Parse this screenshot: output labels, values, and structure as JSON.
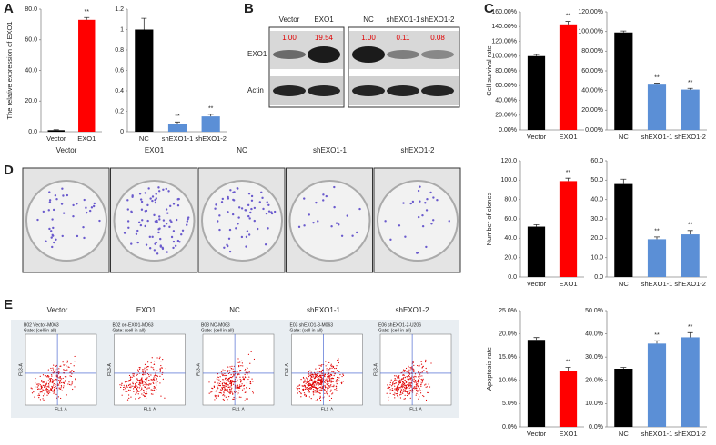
{
  "panels": [
    "A",
    "B",
    "C",
    "D",
    "E"
  ],
  "blot": {
    "lanes": [
      "Vector",
      "EXO1",
      "NC",
      "shEXO1-1",
      "shEXO1-2"
    ],
    "rows": [
      "EXO1",
      "Actin"
    ],
    "quant": [
      "1.00",
      "19.54",
      "1.00",
      "0.11",
      "0.08"
    ]
  },
  "colony": {
    "labels": [
      "Vector",
      "EXO1",
      "NC",
      "shEXO1-1",
      "shEXO1-2"
    ]
  },
  "flow": {
    "labels": [
      "Vector",
      "EXO1",
      "NC",
      "shEXO1-1",
      "shEXO1-2"
    ],
    "headers": [
      "B02 Vector-M063",
      "B02 oe-EXO1-M063",
      "B08 NC-M063",
      "E03 shEXO1-3-M063",
      "E06 shEXO1-2-U206"
    ],
    "gate": "Gate: (cell in all)",
    "x_label": "FL1-A",
    "y_label": "FL3-A"
  },
  "chart_data": [
    {
      "type": "bar",
      "ylabel": "The relative expression of EXO1",
      "categories": [
        "Vector",
        "EXO1"
      ],
      "values": [
        1,
        73
      ],
      "errors": [
        0.3,
        1.5
      ],
      "colors": [
        "#000000",
        "#ff0000"
      ],
      "ylim": [
        0,
        80
      ],
      "yticks": [
        {
          "value": 0,
          "label": "0.0"
        },
        {
          "value": 20,
          "label": "20.0"
        },
        {
          "value": 40,
          "label": "40.0"
        },
        {
          "value": 60,
          "label": "60.0"
        },
        {
          "value": 80,
          "label": "80.0"
        }
      ],
      "annotations": [
        {
          "category": "EXO1",
          "text": "**"
        }
      ]
    },
    {
      "type": "bar",
      "categories": [
        "NC",
        "shEXO1-1",
        "shEXO1-2"
      ],
      "values": [
        1.0,
        0.08,
        0.15
      ],
      "errors": [
        0.11,
        0.015,
        0.02
      ],
      "colors": [
        "#000000",
        "#5b8fd6",
        "#5b8fd6"
      ],
      "ylim": [
        0,
        1.2
      ],
      "yticks": [
        0,
        0.2,
        0.4,
        0.6,
        0.8,
        1,
        1.2
      ],
      "annotations": [
        {
          "category": "shEXO1-1",
          "text": "**"
        },
        {
          "category": "shEXO1-2",
          "text": "**"
        }
      ]
    },
    {
      "type": "bar",
      "ylabel": "Cell survival rate",
      "categories": [
        "Vector",
        "EXO1"
      ],
      "values": [
        100,
        143
      ],
      "errors": [
        2,
        4
      ],
      "colors": [
        "#000000",
        "#ff0000"
      ],
      "ylim": [
        0,
        160
      ],
      "yticks": [
        {
          "value": 0,
          "label": "0.00%"
        },
        {
          "value": 20,
          "label": "20.00%"
        },
        {
          "value": 40,
          "label": "40.00%"
        },
        {
          "value": 60,
          "label": "60.00%"
        },
        {
          "value": 80,
          "label": "80.00%"
        },
        {
          "value": 100,
          "label": "100.00%"
        },
        {
          "value": 120,
          "label": "120.00%"
        },
        {
          "value": 140,
          "label": "140.00%"
        },
        {
          "value": 160,
          "label": "160.00%"
        }
      ],
      "annotations": [
        {
          "category": "EXO1",
          "text": "**"
        }
      ]
    },
    {
      "type": "bar",
      "categories": [
        "NC",
        "shEXO1-1",
        "shEXO1-2"
      ],
      "values": [
        99,
        46,
        41
      ],
      "errors": [
        1.5,
        1.5,
        1.2
      ],
      "colors": [
        "#000000",
        "#5b8fd6",
        "#5b8fd6"
      ],
      "ylim": [
        0,
        120
      ],
      "yticks": [
        {
          "value": 0,
          "label": "0.00%"
        },
        {
          "value": 20,
          "label": "20.00%"
        },
        {
          "value": 40,
          "label": "40.00%"
        },
        {
          "value": 60,
          "label": "60.00%"
        },
        {
          "value": 80,
          "label": "80.00%"
        },
        {
          "value": 100,
          "label": "100.00%"
        },
        {
          "value": 120,
          "label": "120.00%"
        }
      ],
      "annotations": [
        {
          "category": "shEXO1-1",
          "text": "**"
        },
        {
          "category": "shEXO1-2",
          "text": "**"
        }
      ]
    },
    {
      "type": "bar",
      "ylabel": "Number of clones",
      "categories": [
        "Vector",
        "EXO1"
      ],
      "values": [
        52,
        99
      ],
      "errors": [
        2,
        3
      ],
      "colors": [
        "#000000",
        "#ff0000"
      ],
      "ylim": [
        0,
        120
      ],
      "yticks": [
        {
          "value": 0,
          "label": "0.0"
        },
        {
          "value": 20,
          "label": "20.0"
        },
        {
          "value": 40,
          "label": "40.0"
        },
        {
          "value": 60,
          "label": "60.0"
        },
        {
          "value": 80,
          "label": "80.0"
        },
        {
          "value": 100,
          "label": "100.0"
        },
        {
          "value": 120,
          "label": "120.0"
        }
      ],
      "annotations": [
        {
          "category": "EXO1",
          "text": "**"
        }
      ]
    },
    {
      "type": "bar",
      "categories": [
        "NC",
        "shEXO1-1",
        "shEXO1-2"
      ],
      "values": [
        48,
        19.5,
        22
      ],
      "errors": [
        2.5,
        1.2,
        2
      ],
      "colors": [
        "#000000",
        "#5b8fd6",
        "#5b8fd6"
      ],
      "ylim": [
        0,
        60
      ],
      "yticks": [
        {
          "value": 0,
          "label": "0.0"
        },
        {
          "value": 10,
          "label": "10.0"
        },
        {
          "value": 20,
          "label": "20.0"
        },
        {
          "value": 30,
          "label": "30.0"
        },
        {
          "value": 40,
          "label": "40.0"
        },
        {
          "value": 50,
          "label": "50.0"
        },
        {
          "value": 60,
          "label": "60.0"
        }
      ],
      "annotations": [
        {
          "category": "shEXO1-1",
          "text": "**"
        },
        {
          "category": "shEXO1-2",
          "text": "**"
        }
      ]
    },
    {
      "type": "bar",
      "ylabel": "Apoptosis rate",
      "categories": [
        "Vector",
        "EXO1"
      ],
      "values": [
        18.7,
        12.1
      ],
      "errors": [
        0.5,
        0.7
      ],
      "colors": [
        "#000000",
        "#ff0000"
      ],
      "ylim": [
        0,
        25
      ],
      "yticks": [
        {
          "value": 0,
          "label": "0.0%"
        },
        {
          "value": 5,
          "label": "5.0%"
        },
        {
          "value": 10,
          "label": "10.0%"
        },
        {
          "value": 15,
          "label": "15.0%"
        },
        {
          "value": 20,
          "label": "20.0%"
        },
        {
          "value": 25,
          "label": "25.0%"
        }
      ],
      "annotations": [
        {
          "category": "EXO1",
          "text": "**"
        }
      ]
    },
    {
      "type": "bar",
      "categories": [
        "NC",
        "shEXO1-1",
        "shEXO1-2"
      ],
      "values": [
        25,
        35.8,
        38.5
      ],
      "errors": [
        0.6,
        1.2,
        2
      ],
      "colors": [
        "#000000",
        "#5b8fd6",
        "#5b8fd6"
      ],
      "ylim": [
        0,
        50
      ],
      "yticks": [
        {
          "value": 0,
          "label": "0.0%"
        },
        {
          "value": 10,
          "label": "10.0%"
        },
        {
          "value": 20,
          "label": "20.0%"
        },
        {
          "value": 30,
          "label": "30.0%"
        },
        {
          "value": 40,
          "label": "40.0%"
        },
        {
          "value": 50,
          "label": "50.0%"
        }
      ],
      "annotations": [
        {
          "category": "shEXO1-1",
          "text": "**"
        },
        {
          "category": "shEXO1-2",
          "text": "**"
        }
      ]
    }
  ]
}
